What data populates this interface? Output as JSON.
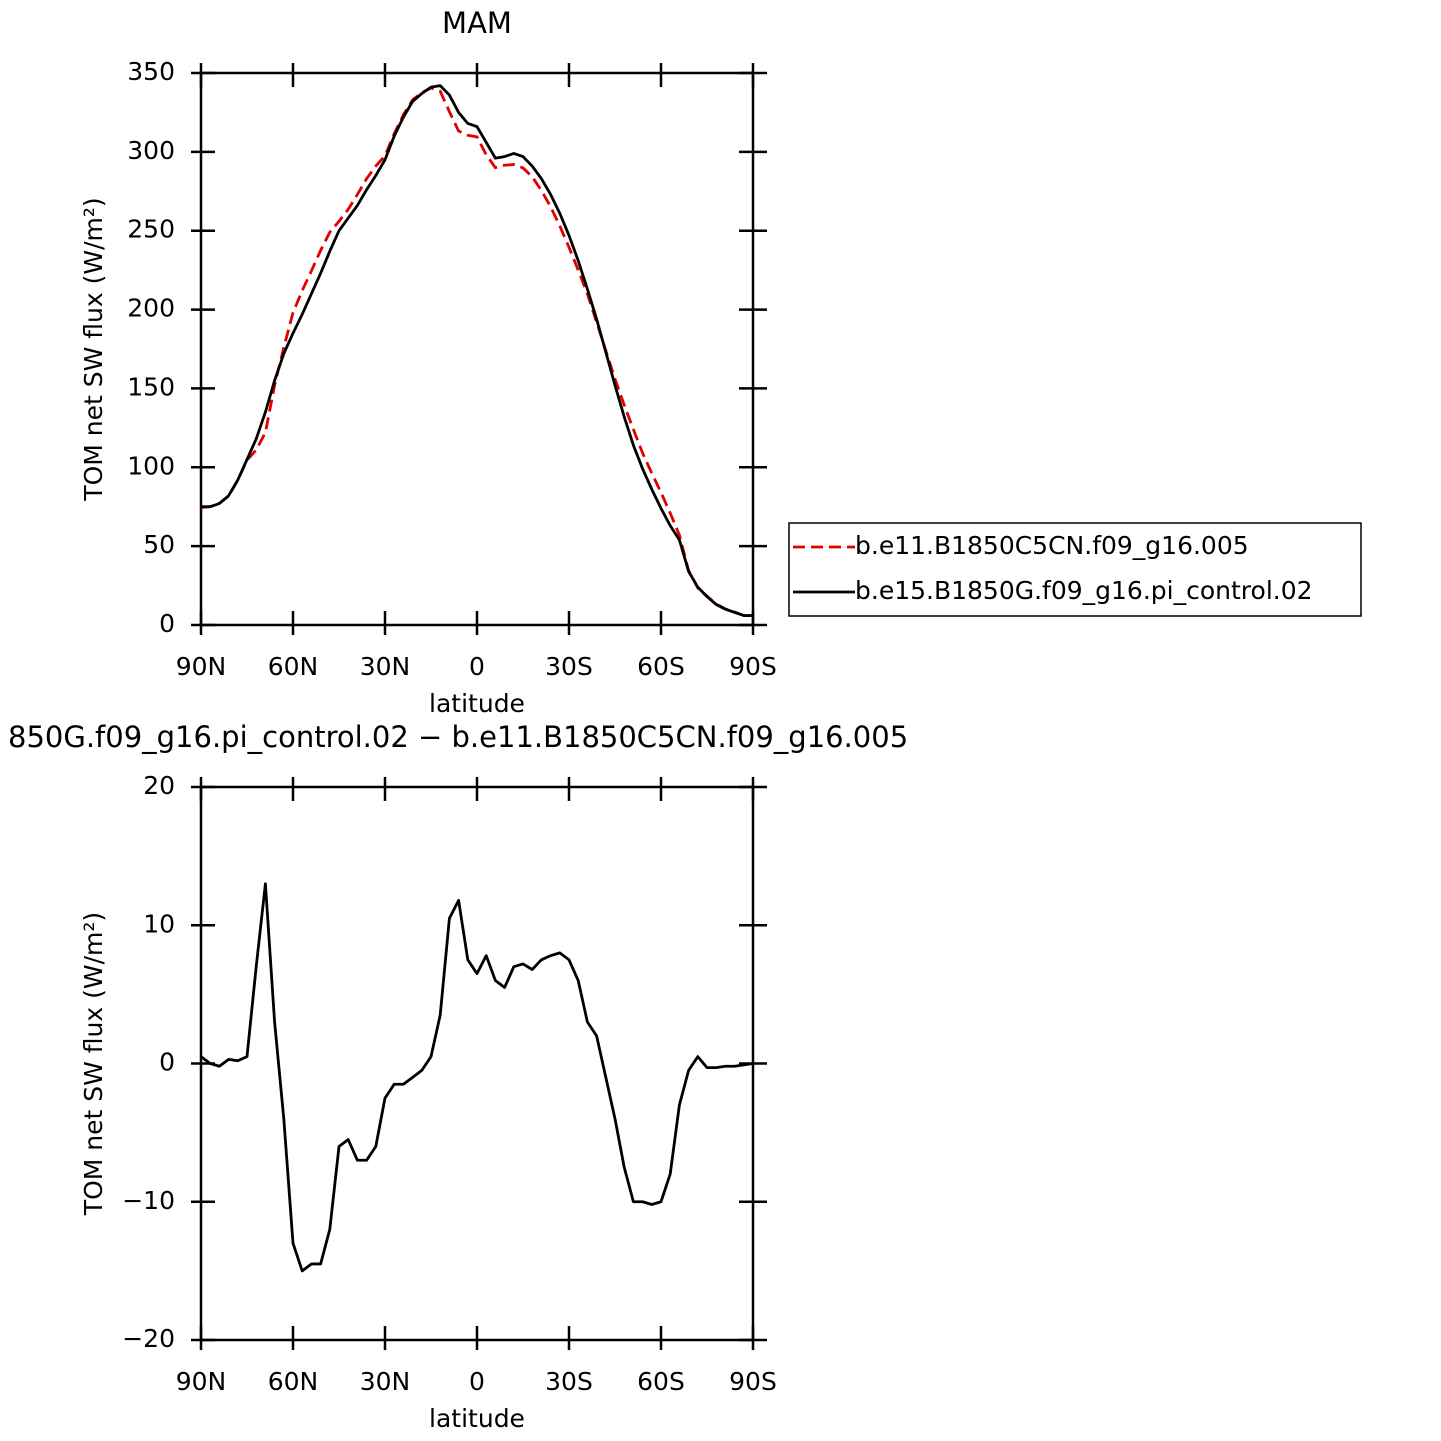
{
  "chart_data": [
    {
      "type": "line",
      "title": "MAM",
      "xlabel": "latitude",
      "ylabel": "TOM net SW flux (W/m²)",
      "x": [
        90,
        87,
        84,
        81,
        78,
        75,
        72,
        69,
        66,
        63,
        60,
        57,
        54,
        51,
        48,
        45,
        42,
        39,
        36,
        33,
        30,
        27,
        24,
        21,
        18,
        15,
        12,
        9,
        6,
        3,
        0,
        -3,
        -6,
        -9,
        -12,
        -15,
        -18,
        -21,
        -24,
        -27,
        -30,
        -33,
        -36,
        -39,
        -42,
        -45,
        -48,
        -51,
        -54,
        -57,
        -60,
        -63,
        -66,
        -69,
        -72,
        -75,
        -78,
        -81,
        -84,
        -87,
        -90
      ],
      "xlim": [
        90,
        -90
      ],
      "xticks": [
        {
          "value": 90,
          "label": "90N"
        },
        {
          "value": 60,
          "label": "60N"
        },
        {
          "value": 30,
          "label": "30N"
        },
        0,
        {
          "value": -30,
          "label": "30S"
        },
        {
          "value": -60,
          "label": "60S"
        },
        {
          "value": -90,
          "label": "90S"
        }
      ],
      "ylim": [
        0,
        350
      ],
      "yticks": [
        0,
        50,
        100,
        150,
        200,
        250,
        300,
        350
      ],
      "legend": "right",
      "series": [
        {
          "name": "b.e11.B1850C5CN.f09_g16.005",
          "color": "#e00000",
          "dashed": true,
          "values": [
            74.5,
            75,
            77.2,
            81.7,
            91.8,
            104.5,
            111,
            122,
            152,
            176,
            198,
            212,
            224.5,
            237.5,
            249,
            256,
            263.5,
            273,
            283,
            291,
            297.5,
            311.5,
            323.5,
            333,
            337.5,
            340.5,
            338.5,
            325.5,
            313.2,
            310.5,
            309.5,
            298.2,
            290,
            291.5,
            292,
            289.8,
            284.2,
            275.5,
            265.2,
            253,
            239.5,
            225,
            210,
            192,
            174,
            156,
            139.5,
            124,
            109,
            96.2,
            84,
            71,
            57,
            34.5,
            23.5,
            18.3,
            13.3,
            10.2,
            8.2,
            6.1,
            6
          ]
        },
        {
          "name": "b.e15.B1850G.f09_g16.pi_control.02",
          "color": "#000000",
          "dashed": false,
          "values": [
            75,
            75,
            77,
            82,
            92,
            105,
            118,
            135,
            155,
            172,
            185,
            197,
            210,
            223,
            237,
            250,
            258,
            266,
            276,
            285,
            295,
            310,
            322,
            332,
            337,
            341,
            342,
            336,
            325,
            318,
            316,
            306,
            296,
            297,
            299,
            297,
            291,
            283,
            273,
            261,
            247,
            231,
            213,
            194,
            173,
            152,
            132,
            114,
            99,
            86,
            74,
            63,
            54,
            34,
            24,
            18,
            13,
            10,
            8,
            6,
            6
          ]
        }
      ]
    },
    {
      "type": "line",
      "title": "850G.f09_g16.pi_control.02 − b.e11.B1850C5CN.f09_g16.005",
      "xlabel": "latitude",
      "ylabel": "TOM net SW flux (W/m²)",
      "x": [
        90,
        87,
        84,
        81,
        78,
        75,
        72,
        69,
        66,
        63,
        60,
        57,
        54,
        51,
        48,
        45,
        42,
        39,
        36,
        33,
        30,
        27,
        24,
        21,
        18,
        15,
        12,
        9,
        6,
        3,
        0,
        -3,
        -6,
        -9,
        -12,
        -15,
        -18,
        -21,
        -24,
        -27,
        -30,
        -33,
        -36,
        -39,
        -42,
        -45,
        -48,
        -51,
        -54,
        -57,
        -60,
        -63,
        -66,
        -69,
        -72,
        -75,
        -78,
        -81,
        -84,
        -87,
        -90
      ],
      "xlim": [
        90,
        -90
      ],
      "xticks": [
        {
          "value": 90,
          "label": "90N"
        },
        {
          "value": 60,
          "label": "60N"
        },
        {
          "value": 30,
          "label": "30N"
        },
        0,
        {
          "value": -30,
          "label": "30S"
        },
        {
          "value": -60,
          "label": "60S"
        },
        {
          "value": -90,
          "label": "90S"
        }
      ],
      "ylim": [
        -20,
        20
      ],
      "yticks": [
        {
          "value": -20,
          "label": "−20"
        },
        {
          "value": -10,
          "label": "−10"
        },
        0,
        10,
        20
      ],
      "series": [
        {
          "color": "#000000",
          "dashed": false,
          "values": [
            0.5,
            0,
            -0.2,
            0.3,
            0.2,
            0.5,
            7,
            13,
            3,
            -4,
            -13,
            -15,
            -14.5,
            -14.5,
            -12,
            -6,
            -5.5,
            -7,
            -7,
            -6,
            -2.5,
            -1.5,
            -1.5,
            -1,
            -0.5,
            0.5,
            3.5,
            10.5,
            11.8,
            7.5,
            6.5,
            7.8,
            6,
            5.5,
            7,
            7.2,
            6.8,
            7.5,
            7.8,
            8,
            7.5,
            6,
            3,
            2,
            -1,
            -4,
            -7.5,
            -10,
            -10,
            -10.2,
            -10,
            -8,
            -3,
            -0.5,
            0.5,
            -0.3,
            -0.3,
            -0.2,
            -0.2,
            -0.1,
            0
          ]
        }
      ]
    }
  ]
}
